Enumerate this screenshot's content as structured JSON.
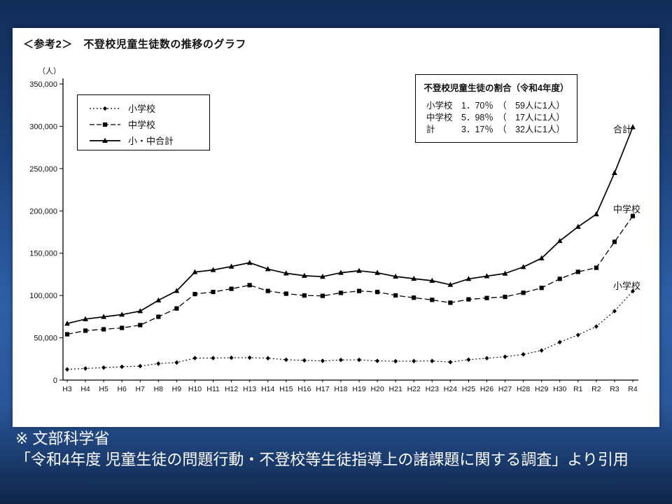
{
  "panel": {
    "title": "＜参考2＞　不登校児童生徒数の推移のグラフ"
  },
  "chart_data": {
    "type": "line",
    "title": "不登校児童生徒数の推移のグラフ",
    "y_axis_unit": "（人）",
    "ylim": [
      0,
      350000
    ],
    "y_tick_step": 50000,
    "grid": false,
    "legend_position": "top-left-inside",
    "categories": [
      "H3",
      "H4",
      "H5",
      "H6",
      "H7",
      "H8",
      "H9",
      "H10",
      "H11",
      "H12",
      "H13",
      "H14",
      "H15",
      "H16",
      "H17",
      "H18",
      "H19",
      "H20",
      "H21",
      "H22",
      "H23",
      "H24",
      "H25",
      "H26",
      "H27",
      "H28",
      "H29",
      "H30",
      "R1",
      "R2",
      "R3",
      "R4"
    ],
    "series": [
      {
        "name": "小学校",
        "end_label": "小学校",
        "marker": "diamond",
        "line": "dotted",
        "values": [
          12645,
          13710,
          14769,
          15786,
          16569,
          19498,
          20765,
          26017,
          26047,
          26373,
          26511,
          25869,
          24077,
          23318,
          22709,
          23825,
          23927,
          22652,
          22327,
          22463,
          22622,
          21243,
          24175,
          25864,
          27583,
          30448,
          35032,
          44841,
          53350,
          63350,
          81498,
          105112
        ]
      },
      {
        "name": "中学校",
        "end_label": "中学校",
        "marker": "square",
        "line": "dashed",
        "values": [
          54172,
          58421,
          60039,
          61663,
          65022,
          74853,
          84701,
          101675,
          104180,
          107913,
          112211,
          105383,
          102149,
          100040,
          99578,
          103069,
          105328,
          104153,
          100105,
          97428,
          94836,
          91446,
          95442,
          97033,
          98408,
          103235,
          108999,
          119687,
          127922,
          132777,
          163442,
          193936
        ]
      },
      {
        "name": "小・中合計",
        "end_label": "合計",
        "marker": "triangle",
        "line": "solid",
        "values": [
          66817,
          72131,
          74808,
          77449,
          81591,
          94351,
          105466,
          127692,
          130227,
          134286,
          138722,
          131252,
          126226,
          123358,
          122287,
          126894,
          129255,
          126805,
          122432,
          119891,
          117458,
          112689,
          119617,
          122897,
          125991,
          133683,
          144031,
          164528,
          181272,
          196127,
          244940,
          299048
        ]
      }
    ]
  },
  "ratio_box": {
    "title": "不登校児童生徒の割合（令和4年度）",
    "rows": [
      "小学校　1．70％　（　59人に1人）",
      "中学校　5．98％　（　17人に1人）",
      "計　　　3．17％　（　32人に1人）"
    ]
  },
  "citation": {
    "line1": "※ 文部科学省",
    "line2": "「令和4年度 児童生徒の問題行動・不登校等生徒指導上の諸課題に関する調査」より引用"
  }
}
